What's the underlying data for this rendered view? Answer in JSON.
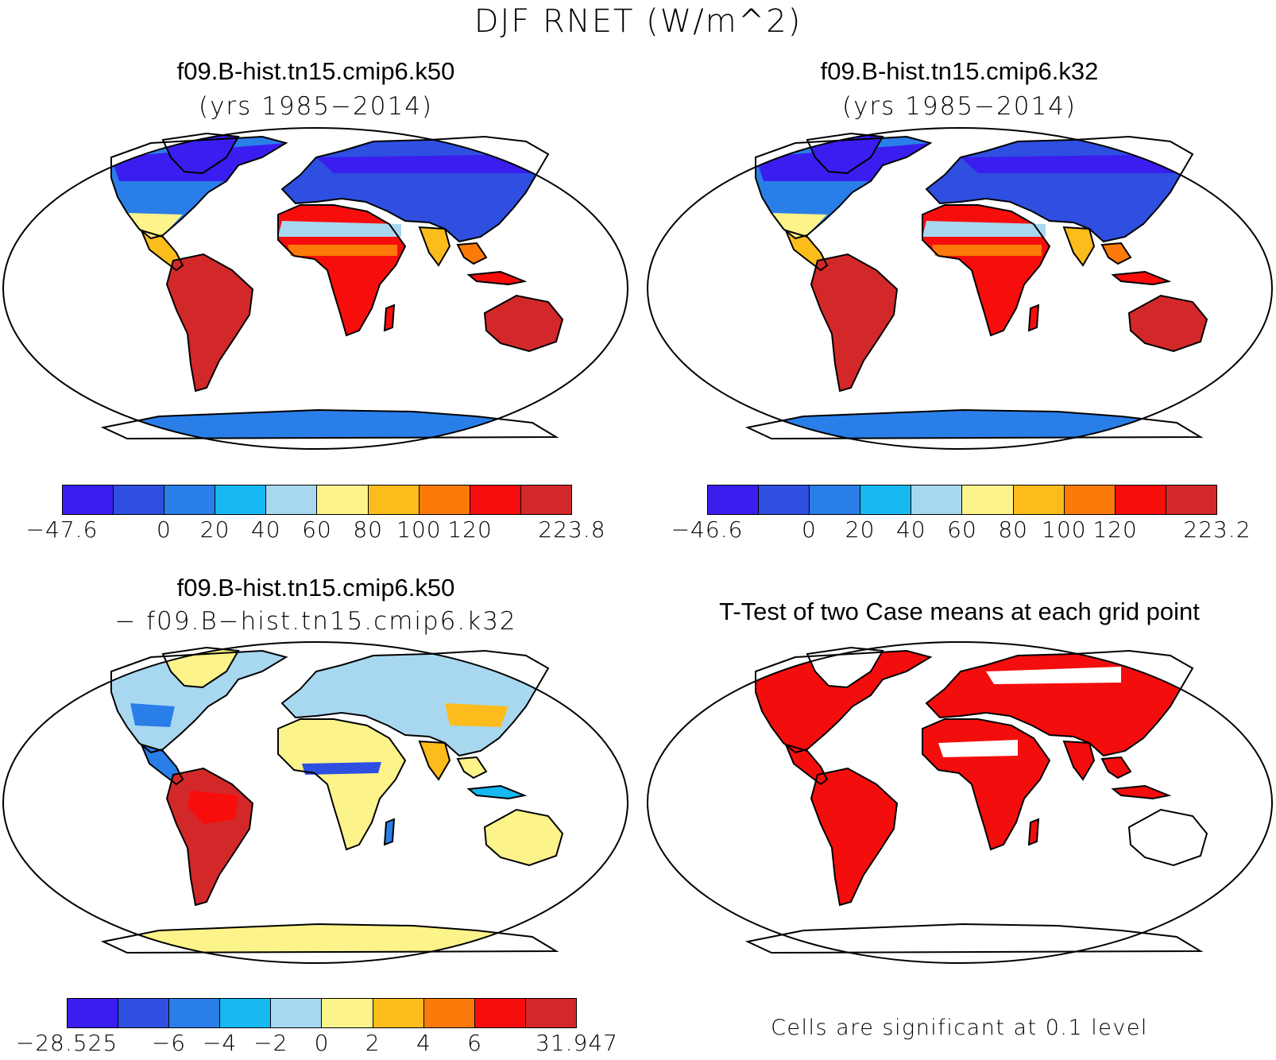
{
  "main_title": "DJF RNET (W/m^2)",
  "panels": {
    "p1": {
      "title": "f09.B-hist.tn15.cmip6.k50",
      "subtitle": "(yrs 1985−2014)"
    },
    "p2": {
      "title": "f09.B-hist.tn15.cmip6.k32",
      "subtitle": "(yrs 1985−2014)"
    },
    "p3": {
      "title": "f09.B-hist.tn15.cmip6.k50",
      "subtitle": "− f09.B−hist.tn15.cmip6.k32"
    },
    "p4": {
      "title": "T-Test of two Case means at each grid point",
      "note": "Cells are significant at 0.1 level"
    }
  },
  "colorbars": {
    "cb1": {
      "colors": [
        "#3a1ef0",
        "#2e4fe0",
        "#2a7ee8",
        "#16b8f2",
        "#a8d8f0",
        "#fcf38a",
        "#fcbc1c",
        "#fc7a0a",
        "#f80d0d",
        "#d3282a"
      ],
      "labels": [
        "−47.6",
        "0",
        "20",
        "40",
        "60",
        "80",
        "100",
        "120",
        "223.8"
      ],
      "label_boundaries": [
        0,
        2,
        3,
        4,
        5,
        6,
        7,
        8,
        10
      ]
    },
    "cb2": {
      "colors": [
        "#3a1ef0",
        "#2e4fe0",
        "#2a7ee8",
        "#16b8f2",
        "#a8d8f0",
        "#fcf38a",
        "#fcbc1c",
        "#fc7a0a",
        "#f80d0d",
        "#d3282a"
      ],
      "labels": [
        "−46.6",
        "0",
        "20",
        "40",
        "60",
        "80",
        "100",
        "120",
        "223.2"
      ],
      "label_boundaries": [
        0,
        2,
        3,
        4,
        5,
        6,
        7,
        8,
        10
      ]
    },
    "cb3": {
      "colors": [
        "#3a1ef0",
        "#2e4fe0",
        "#2a7ee8",
        "#16b8f2",
        "#a8d8f0",
        "#fcf38a",
        "#fcbc1c",
        "#fc7a0a",
        "#f80d0d",
        "#d3282a"
      ],
      "labels": [
        "−28.525",
        "−6",
        "−4",
        "−2",
        "0",
        "2",
        "4",
        "6",
        "31.947"
      ],
      "label_boundaries": [
        0,
        2,
        3,
        4,
        5,
        6,
        7,
        8,
        10
      ]
    }
  },
  "map_colors": {
    "ocean": "#ffffff",
    "coast": "#000000",
    "significant": "#f40d0d"
  }
}
